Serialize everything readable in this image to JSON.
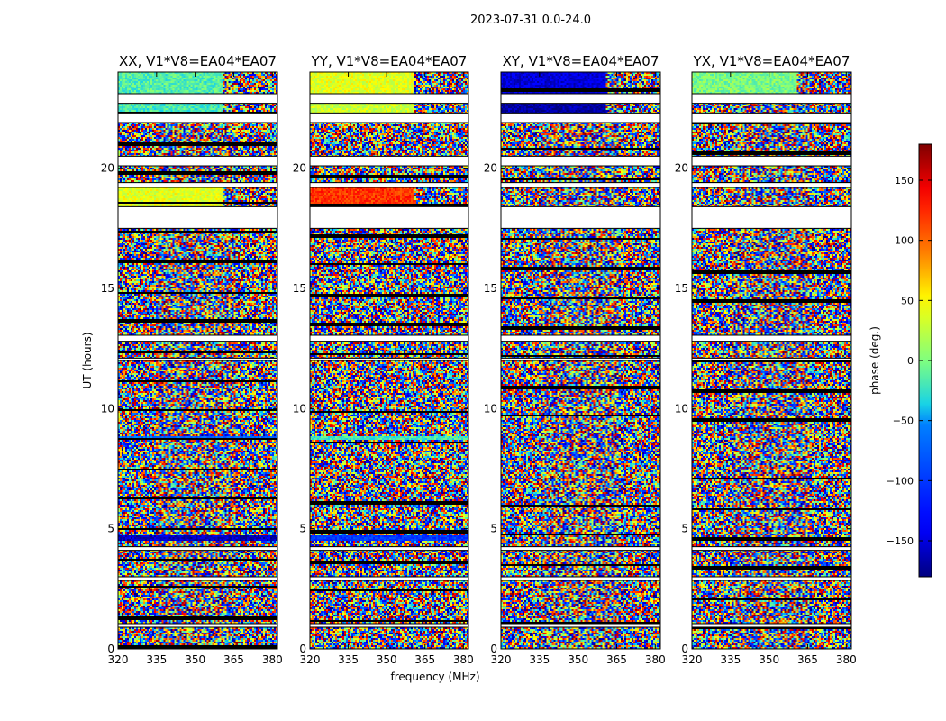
{
  "chart_data": {
    "type": "heatmap",
    "suptitle": "2023-07-31 0.0-24.0",
    "xlabel": "frequency (MHz)",
    "ylabel": "UT (hours)",
    "xlim": [
      320,
      382
    ],
    "ylim": [
      0,
      24
    ],
    "xticks": [
      320,
      335,
      350,
      365,
      380
    ],
    "yticks": [
      0,
      5,
      10,
      15,
      20
    ],
    "colorbar": {
      "label": "phase (deg.)",
      "range": [
        -180,
        180
      ],
      "ticks": [
        -150,
        -100,
        -50,
        0,
        50,
        100,
        150
      ],
      "tick_labels": [
        "−150",
        "−100",
        "−50",
        "0",
        "50",
        "100",
        "150"
      ]
    },
    "colormap": [
      "#00007f",
      "#0000ff",
      "#007fff",
      "#00ffff",
      "#7fff7f",
      "#ffff00",
      "#ff7f00",
      "#ff0000",
      "#7f0000"
    ],
    "panels": [
      {
        "title": "XX, V1*V8=EA04*EA07",
        "polarization": "XX"
      },
      {
        "title": "YY, V1*V8=EA04*EA07",
        "polarization": "YY"
      },
      {
        "title": "XY, V1*V8=EA04*EA07",
        "polarization": "XY"
      },
      {
        "title": "YX, V1*V8=EA04*EA07",
        "polarization": "YX"
      }
    ],
    "flagged_ut_ranges": [
      [
        0.9,
        1.05
      ],
      [
        2.85,
        3.0
      ],
      [
        4.1,
        4.25
      ],
      [
        12.0,
        12.1
      ],
      [
        12.8,
        13.05
      ],
      [
        17.5,
        18.4
      ],
      [
        19.2,
        19.4
      ],
      [
        20.1,
        20.5
      ],
      [
        21.9,
        22.3
      ],
      [
        22.7,
        23.1
      ]
    ],
    "band_features": [
      {
        "polarization": "XX",
        "ut_range": [
          23.0,
          24.0
        ],
        "freq_range": [
          320,
          361
        ],
        "phase_deg": -15
      },
      {
        "polarization": "XX",
        "ut_range": [
          22.3,
          22.7
        ],
        "freq_range": [
          320,
          361
        ],
        "phase_deg": -20
      },
      {
        "polarization": "XX",
        "ut_range": [
          18.4,
          19.2
        ],
        "freq_range": [
          320,
          361
        ],
        "phase_deg": 40
      },
      {
        "polarization": "XX",
        "ut_range": [
          8.7,
          8.85
        ],
        "freq_range": [
          320,
          382
        ],
        "phase_deg": -70
      },
      {
        "polarization": "XX",
        "ut_range": [
          4.5,
          4.7
        ],
        "freq_range": [
          320,
          382
        ],
        "phase_deg": -160
      },
      {
        "polarization": "YY",
        "ut_range": [
          23.0,
          24.0
        ],
        "freq_range": [
          320,
          361
        ],
        "phase_deg": 40
      },
      {
        "polarization": "YY",
        "ut_range": [
          22.3,
          22.7
        ],
        "freq_range": [
          320,
          361
        ],
        "phase_deg": 30
      },
      {
        "polarization": "YY",
        "ut_range": [
          18.4,
          19.2
        ],
        "freq_range": [
          320,
          361
        ],
        "phase_deg": 120
      },
      {
        "polarization": "YY",
        "ut_range": [
          8.7,
          8.85
        ],
        "freq_range": [
          320,
          382
        ],
        "phase_deg": -20
      },
      {
        "polarization": "YY",
        "ut_range": [
          4.5,
          4.7
        ],
        "freq_range": [
          320,
          382
        ],
        "phase_deg": -100
      },
      {
        "polarization": "XY",
        "ut_range": [
          23.0,
          24.0
        ],
        "freq_range": [
          320,
          361
        ],
        "phase_deg": -150
      },
      {
        "polarization": "XY",
        "ut_range": [
          22.3,
          22.7
        ],
        "freq_range": [
          320,
          361
        ],
        "phase_deg": -170
      },
      {
        "polarization": "YX",
        "ut_range": [
          23.0,
          24.0
        ],
        "freq_range": [
          320,
          361
        ],
        "phase_deg": 0
      }
    ]
  }
}
